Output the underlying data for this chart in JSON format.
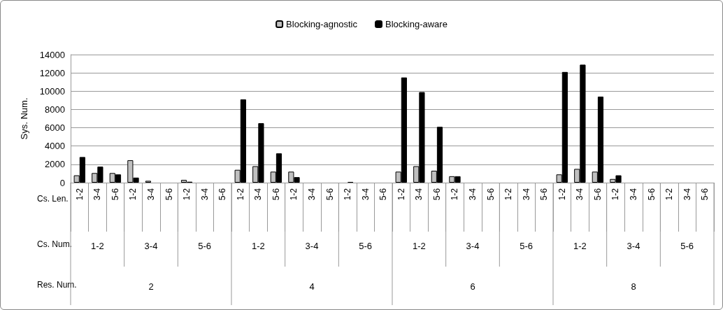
{
  "chart_data": {
    "type": "bar",
    "categories": [
      "1-2",
      "3-4",
      "5-6",
      "1-2",
      "3-4",
      "5-6",
      "1-2",
      "3-4",
      "5-6",
      "1-2",
      "3-4",
      "5-6",
      "1-2",
      "3-4",
      "5-6",
      "1-2",
      "3-4",
      "5-6",
      "1-2",
      "3-4",
      "5-6",
      "1-2",
      "3-4",
      "5-6",
      "1-2",
      "3-4",
      "5-6",
      "1-2",
      "3-4",
      "5-6",
      "1-2",
      "3-4",
      "5-6",
      "1-2",
      "3-4",
      "5-6"
    ],
    "series": [
      {
        "name": "Blocking-agnostic",
        "color": "#c0c0c0",
        "values": [
          800,
          1050,
          1050,
          2450,
          200,
          0,
          300,
          0,
          0,
          1400,
          1800,
          1200,
          1200,
          0,
          0,
          0,
          0,
          0,
          1200,
          1800,
          1300,
          700,
          0,
          0,
          0,
          0,
          0,
          900,
          1500,
          1200,
          400,
          0,
          0,
          0,
          0,
          0
        ]
      },
      {
        "name": "Blocking-aware",
        "color": "#000000",
        "values": [
          2800,
          1750,
          900,
          550,
          0,
          0,
          100,
          0,
          0,
          9100,
          6500,
          3200,
          600,
          0,
          0,
          80,
          0,
          0,
          11500,
          9900,
          6100,
          700,
          0,
          0,
          0,
          0,
          0,
          12100,
          12900,
          9400,
          800,
          0,
          0,
          0,
          0,
          0
        ]
      }
    ],
    "ylabel": "Sys. Num.",
    "ylim": [
      0,
      14000
    ],
    "yticks": [
      0,
      2000,
      4000,
      6000,
      8000,
      10000,
      12000,
      14000
    ],
    "grid": "y",
    "legend": "top",
    "annotations": [
      "Cs. Len.",
      "Cs. Num.",
      "Res. Num.",
      "1-2",
      "3-4",
      "5-6",
      "1-2",
      "3-4",
      "5-6",
      "1-2",
      "3-4",
      "5-6",
      "1-2",
      "3-4",
      "5-6",
      "2",
      "4",
      "6",
      "8"
    ]
  }
}
